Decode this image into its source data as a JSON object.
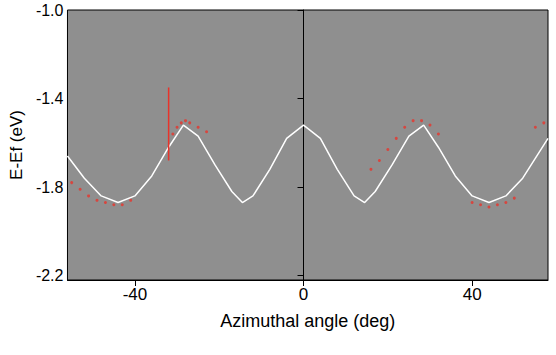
{
  "chart_data": {
    "type": "line",
    "x_label": "Azimuthal angle (deg)",
    "y_label": "E-Ef (eV)",
    "xlim": [
      -56,
      58
    ],
    "ylim": [
      -2.22,
      -1.0
    ],
    "xticks": [
      -40,
      0,
      40
    ],
    "yticks": [
      -2.2,
      -1.8,
      -1.4,
      {
        "value": -1.0,
        "label": "-1.0"
      }
    ],
    "grid": false,
    "series": [
      {
        "type": "line",
        "color": "#ffffff",
        "line_style": "solid",
        "x": [
          -56,
          -52,
          -48,
          -44,
          -40,
          -36,
          -32,
          -28.5,
          -25,
          -21,
          -17,
          -14.5,
          -12,
          -8,
          -4,
          0,
          4,
          8,
          12,
          14.5,
          17,
          21,
          25,
          28.5,
          32,
          36,
          40,
          44,
          48,
          52,
          56,
          58
        ],
        "values": [
          -1.66,
          -1.76,
          -1.84,
          -1.87,
          -1.84,
          -1.75,
          -1.62,
          -1.52,
          -1.57,
          -1.7,
          -1.82,
          -1.87,
          -1.84,
          -1.72,
          -1.58,
          -1.52,
          -1.58,
          -1.72,
          -1.84,
          -1.87,
          -1.82,
          -1.7,
          -1.57,
          -1.52,
          -1.62,
          -1.75,
          -1.84,
          -1.87,
          -1.84,
          -1.76,
          -1.64,
          -1.58
        ]
      },
      {
        "type": "scatter",
        "color": "#e8332a",
        "marker": "circle",
        "x": [
          -55,
          -53,
          -51,
          -49,
          -47,
          -45,
          -43,
          -41,
          -31,
          -30,
          -29,
          -28,
          -27,
          -25,
          -23,
          16,
          18,
          20,
          22,
          24,
          26,
          28,
          30,
          32,
          40,
          42,
          44,
          46,
          48,
          50,
          55,
          57
        ],
        "values": [
          -1.78,
          -1.81,
          -1.84,
          -1.86,
          -1.87,
          -1.88,
          -1.88,
          -1.86,
          -1.56,
          -1.53,
          -1.51,
          -1.5,
          -1.51,
          -1.53,
          -1.55,
          -1.72,
          -1.68,
          -1.63,
          -1.58,
          -1.53,
          -1.5,
          -1.5,
          -1.52,
          -1.56,
          -1.87,
          -1.88,
          -1.89,
          -1.88,
          -1.87,
          -1.85,
          -1.53,
          -1.51
        ],
        "error_bars": {
          "x": [
            -32
          ],
          "values": [
            -1.515
          ],
          "errors": [
            0.165
          ]
        }
      }
    ]
  }
}
